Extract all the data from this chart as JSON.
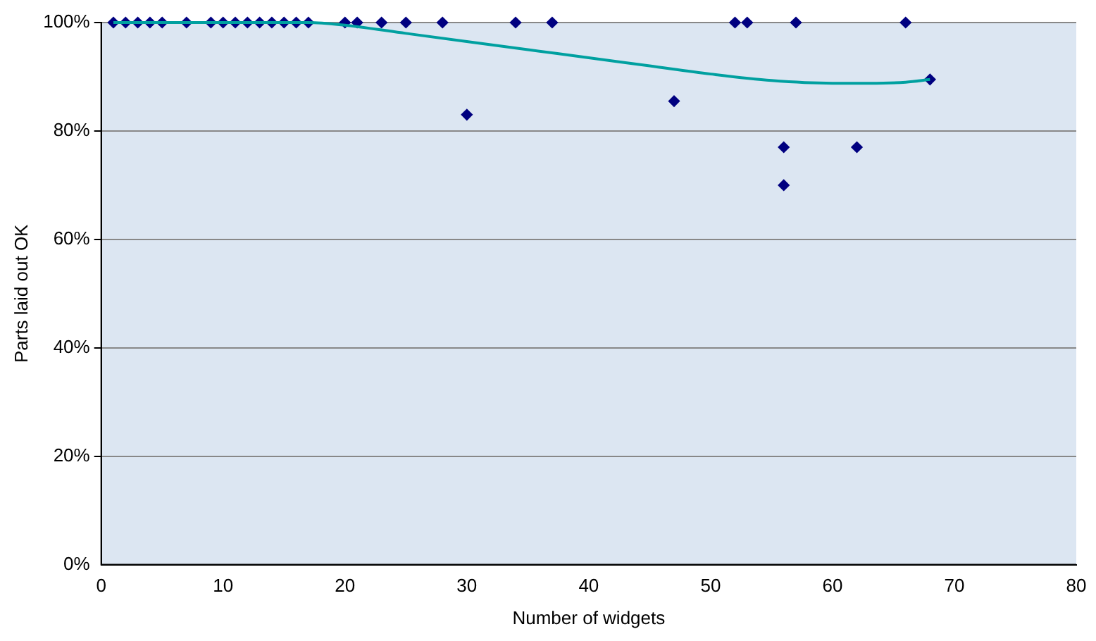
{
  "chart_data": {
    "type": "scatter",
    "xlabel": "Number of widgets",
    "ylabel": "Parts laid out OK",
    "xlim": [
      0,
      80
    ],
    "xticks": [
      0,
      10,
      20,
      30,
      40,
      50,
      60,
      70,
      80
    ],
    "ylim": [
      0,
      100
    ],
    "yticks": [
      {
        "value": 0,
        "label": "0%"
      },
      {
        "value": 20,
        "label": "20%"
      },
      {
        "value": 40,
        "label": "40%"
      },
      {
        "value": 60,
        "label": "60%"
      },
      {
        "value": 80,
        "label": "80%"
      },
      {
        "value": 100,
        "label": "100%"
      }
    ],
    "x": [
      1,
      2,
      3,
      4,
      5,
      7,
      9,
      10,
      11,
      12,
      13,
      14,
      15,
      16,
      17,
      20,
      21,
      23,
      25,
      28,
      30,
      34,
      37,
      47,
      52,
      53,
      56,
      56,
      57,
      62,
      66,
      68
    ],
    "grid": "y",
    "legend": false,
    "marker": "diamond",
    "series": [
      {
        "type": "scatter",
        "color": "#000080",
        "values": [
          100,
          100,
          100,
          100,
          100,
          100,
          100,
          100,
          100,
          100,
          100,
          100,
          100,
          100,
          100,
          100,
          100,
          100,
          100,
          100,
          83,
          100,
          100,
          85.5,
          100,
          100,
          77,
          70,
          100,
          77,
          100,
          89.5
        ]
      },
      {
        "type": "line",
        "color": "#00a0a0",
        "marker": "none",
        "x": [
          1,
          5,
          10,
          17,
          20,
          25,
          30,
          35,
          40,
          45,
          50,
          55,
          60,
          63,
          66,
          68
        ],
        "values": [
          100,
          100,
          100,
          100,
          99.5,
          98,
          96.5,
          95,
          93.5,
          92,
          90.5,
          89.3,
          88.8,
          88.8,
          89,
          89.5
        ]
      }
    ]
  }
}
